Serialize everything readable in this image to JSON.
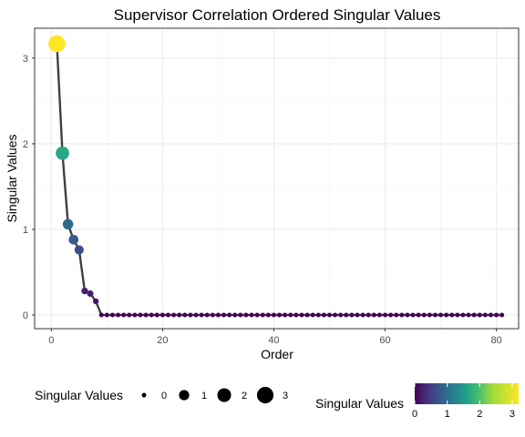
{
  "chart_data": {
    "type": "line",
    "title": "Supervisor Correlation Ordered Singular Values",
    "xlabel": "Order",
    "ylabel": "Singular Values",
    "xlim": [
      -3,
      84
    ],
    "ylim": [
      -0.16,
      3.35
    ],
    "x_ticks": [
      0,
      20,
      40,
      60,
      80
    ],
    "y_ticks": [
      0,
      1,
      2,
      3
    ],
    "grid": true,
    "n_points": 81,
    "points_head": [
      {
        "x": 1,
        "y": 3.17
      },
      {
        "x": 2,
        "y": 1.89
      },
      {
        "x": 3,
        "y": 1.06
      },
      {
        "x": 4,
        "y": 0.88
      },
      {
        "x": 5,
        "y": 0.76
      },
      {
        "x": 6,
        "y": 0.28
      },
      {
        "x": 7,
        "y": 0.25
      },
      {
        "x": 8,
        "y": 0.16
      }
    ],
    "tail_value": 0,
    "line_color": "#404040",
    "color_scale": "viridis",
    "color_range": [
      0,
      3.17
    ],
    "legends": {
      "size": {
        "title": "Singular Values",
        "placement": "bottom-left",
        "breaks": [
          0,
          1,
          2,
          3
        ]
      },
      "color": {
        "title": "Singular Values",
        "placement": "bottom-right",
        "breaks": [
          0,
          1,
          2,
          3
        ]
      }
    }
  }
}
